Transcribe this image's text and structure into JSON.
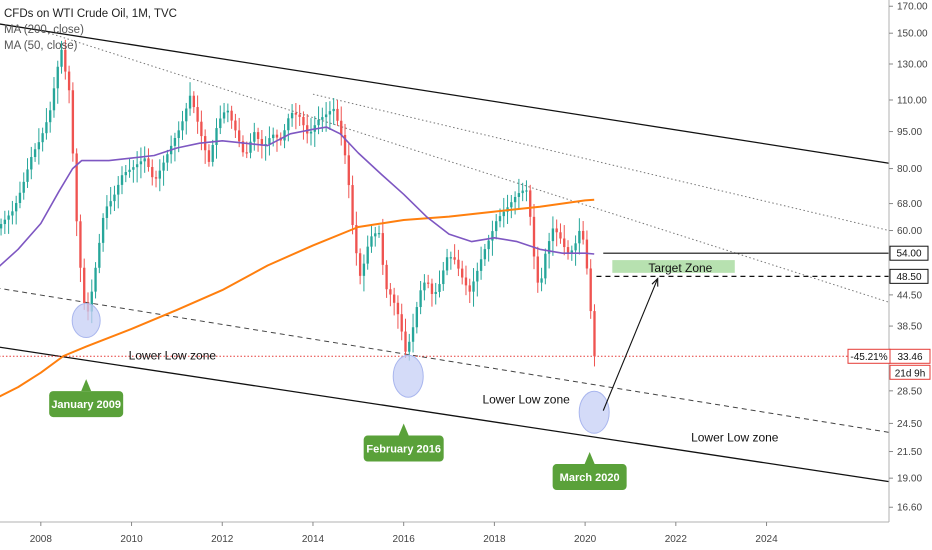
{
  "legend": {
    "title": "CFDs on WTI Crude Oil, 1M, TVC",
    "ma200": "MA (200, close)",
    "ma50": "MA (50, close)"
  },
  "chart_data": {
    "type": "candlestick",
    "title": "CFDs on WTI Crude Oil, 1M, TVC",
    "y_scale": "log",
    "ylim": [
      15.5,
      175
    ],
    "xlim": [
      2007.1,
      2026.7
    ],
    "y_ticks": [
      {
        "v": 170,
        "label": "170.00"
      },
      {
        "v": 150,
        "label": "150.00"
      },
      {
        "v": 130,
        "label": "130.00"
      },
      {
        "v": 110,
        "label": "110.00"
      },
      {
        "v": 95,
        "label": "95.00"
      },
      {
        "v": 80,
        "label": "80.00"
      },
      {
        "v": 68,
        "label": "68.00"
      },
      {
        "v": 60,
        "label": "60.00"
      },
      {
        "v": 44.5,
        "label": "44.50"
      },
      {
        "v": 38.5,
        "label": "38.50"
      },
      {
        "v": 28.5,
        "label": "28.50"
      },
      {
        "v": 24.5,
        "label": "24.50"
      },
      {
        "v": 21.5,
        "label": "21.50"
      },
      {
        "v": 19,
        "label": "19.00"
      },
      {
        "v": 16.6,
        "label": "16.60"
      }
    ],
    "x_ticks": [
      {
        "v": 2008,
        "label": "2008"
      },
      {
        "v": 2010,
        "label": "2010"
      },
      {
        "v": 2012,
        "label": "2012"
      },
      {
        "v": 2014,
        "label": "2014"
      },
      {
        "v": 2016,
        "label": "2016"
      },
      {
        "v": 2018,
        "label": "2018"
      },
      {
        "v": 2020,
        "label": "2020"
      },
      {
        "v": 2022,
        "label": "2022"
      },
      {
        "v": 2024,
        "label": "2024"
      }
    ],
    "price_points": [
      [
        2007.0,
        60
      ],
      [
        2007.2,
        63
      ],
      [
        2007.4,
        66
      ],
      [
        2007.6,
        74
      ],
      [
        2007.8,
        85
      ],
      [
        2008.0,
        92
      ],
      [
        2008.2,
        104
      ],
      [
        2008.35,
        125
      ],
      [
        2008.45,
        140
      ],
      [
        2008.55,
        124
      ],
      [
        2008.65,
        112
      ],
      [
        2008.75,
        70
      ],
      [
        2008.85,
        53
      ],
      [
        2008.95,
        43
      ],
      [
        2009.05,
        41
      ],
      [
        2009.2,
        50
      ],
      [
        2009.4,
        66
      ],
      [
        2009.6,
        70
      ],
      [
        2009.8,
        78
      ],
      [
        2010.0,
        80
      ],
      [
        2010.3,
        84
      ],
      [
        2010.5,
        75
      ],
      [
        2010.7,
        82
      ],
      [
        2010.9,
        90
      ],
      [
        2011.1,
        98
      ],
      [
        2011.3,
        113
      ],
      [
        2011.5,
        96
      ],
      [
        2011.7,
        82
      ],
      [
        2011.9,
        99
      ],
      [
        2012.1,
        106
      ],
      [
        2012.3,
        95
      ],
      [
        2012.5,
        84
      ],
      [
        2012.7,
        95
      ],
      [
        2012.9,
        88
      ],
      [
        2013.1,
        94
      ],
      [
        2013.3,
        91
      ],
      [
        2013.5,
        104
      ],
      [
        2013.7,
        102
      ],
      [
        2013.9,
        93
      ],
      [
        2014.1,
        100
      ],
      [
        2014.3,
        103
      ],
      [
        2014.45,
        106
      ],
      [
        2014.6,
        96
      ],
      [
        2014.75,
        81
      ],
      [
        2014.9,
        58
      ],
      [
        2015.05,
        48
      ],
      [
        2015.25,
        58
      ],
      [
        2015.45,
        60
      ],
      [
        2015.6,
        46
      ],
      [
        2015.75,
        44
      ],
      [
        2015.9,
        40
      ],
      [
        2016.05,
        33.8
      ],
      [
        2016.2,
        38
      ],
      [
        2016.35,
        45
      ],
      [
        2016.5,
        48
      ],
      [
        2016.65,
        44
      ],
      [
        2016.8,
        47
      ],
      [
        2016.95,
        53
      ],
      [
        2017.1,
        53
      ],
      [
        2017.3,
        48
      ],
      [
        2017.45,
        45
      ],
      [
        2017.6,
        49
      ],
      [
        2017.75,
        54
      ],
      [
        2017.9,
        58
      ],
      [
        2018.05,
        63
      ],
      [
        2018.3,
        67
      ],
      [
        2018.5,
        71
      ],
      [
        2018.7,
        73
      ],
      [
        2018.8,
        63
      ],
      [
        2018.9,
        50
      ],
      [
        2019.0,
        45
      ],
      [
        2019.1,
        53
      ],
      [
        2019.3,
        61
      ],
      [
        2019.45,
        58
      ],
      [
        2019.6,
        54
      ],
      [
        2019.75,
        55
      ],
      [
        2019.9,
        61
      ],
      [
        2020.0,
        55
      ],
      [
        2020.1,
        44
      ],
      [
        2020.2,
        33.46
      ]
    ],
    "ma50_points": [
      [
        2007.0,
        50
      ],
      [
        2007.5,
        55
      ],
      [
        2008.0,
        62
      ],
      [
        2008.4,
        72
      ],
      [
        2008.7,
        80
      ],
      [
        2008.9,
        83
      ],
      [
        2009.5,
        83
      ],
      [
        2010.0,
        84
      ],
      [
        2010.5,
        85
      ],
      [
        2011.0,
        88
      ],
      [
        2011.5,
        90
      ],
      [
        2012.0,
        91
      ],
      [
        2012.5,
        90
      ],
      [
        2013.0,
        89
      ],
      [
        2013.5,
        94
      ],
      [
        2014.0,
        96
      ],
      [
        2014.3,
        97
      ],
      [
        2014.6,
        94
      ],
      [
        2015.0,
        86
      ],
      [
        2015.5,
        78
      ],
      [
        2016.0,
        71
      ],
      [
        2016.5,
        64
      ],
      [
        2017.0,
        59
      ],
      [
        2017.5,
        57
      ],
      [
        2018.0,
        58
      ],
      [
        2018.5,
        57
      ],
      [
        2019.0,
        55
      ],
      [
        2019.5,
        54
      ],
      [
        2020.0,
        54
      ],
      [
        2020.2,
        53.8
      ]
    ],
    "ma200_points": [
      [
        2007.0,
        27.5
      ],
      [
        2007.5,
        29
      ],
      [
        2008.0,
        31
      ],
      [
        2008.5,
        33.5
      ],
      [
        2009.0,
        35
      ],
      [
        2010.0,
        38
      ],
      [
        2011.0,
        41.5
      ],
      [
        2012.0,
        45.5
      ],
      [
        2013.0,
        51
      ],
      [
        2014.0,
        56
      ],
      [
        2015.0,
        61
      ],
      [
        2015.5,
        62
      ],
      [
        2016.0,
        63
      ],
      [
        2017.0,
        64
      ],
      [
        2018.0,
        65.5
      ],
      [
        2019.0,
        67
      ],
      [
        2020.0,
        69
      ],
      [
        2020.2,
        69.2
      ]
    ],
    "resistance_line": [
      [
        2007.0,
        157
      ],
      [
        2026.7,
        82
      ]
    ],
    "support_line": [
      [
        2007.0,
        35
      ],
      [
        2026.7,
        18.7
      ]
    ],
    "dashed_trendline": [
      [
        2007.0,
        46
      ],
      [
        2026.7,
        23.5
      ]
    ],
    "dotted_lines": [
      [
        [
          2008.0,
          152
        ],
        [
          2026.7,
          43
        ]
      ],
      [
        [
          2014.0,
          113
        ],
        [
          2026.7,
          60
        ]
      ]
    ],
    "horizontal_levels": [
      {
        "value": 54.0,
        "label": "54.00",
        "style": "solid",
        "x_from": 2020.4
      },
      {
        "value": 48.5,
        "label": "48.50",
        "style": "dashed",
        "x_from": 2020.25
      },
      {
        "value": 33.46,
        "label": "33.46",
        "style": "dotted",
        "x_from": 2007.0
      }
    ],
    "target_zone": {
      "label": "Target Zone",
      "x_from": 2020.6,
      "x_to": 2023.3,
      "y_top": 52.3,
      "y_bottom": 49.3
    },
    "projection_arrow": {
      "from": [
        2020.4,
        26.0
      ],
      "to": [
        2021.6,
        48.0
      ]
    },
    "ellipses": [
      {
        "name": "jan-2009",
        "cx": 2009.0,
        "cy": 39.5
      },
      {
        "name": "feb-2016",
        "cx": 2016.1,
        "cy": 30.5
      },
      {
        "name": "mar-2020",
        "cx": 2020.2,
        "cy": 25.8
      }
    ],
    "annotations": [
      {
        "text": "Lower Low zone",
        "x": 2010.9,
        "y": 33.0
      },
      {
        "text": "Lower Low zone",
        "x": 2018.7,
        "y": 26.9
      },
      {
        "text": "Lower Low zone",
        "x": 2023.3,
        "y": 22.5
      }
    ],
    "badges": [
      {
        "text": "January 2009",
        "x": 2009.0,
        "y": 26.8
      },
      {
        "text": "February 2016",
        "x": 2016.0,
        "y": 21.8
      },
      {
        "text": "March 2020",
        "x": 2020.1,
        "y": 19.1
      }
    ],
    "change_label": "-45.21%",
    "countdown": "21d 9h",
    "last_price": "33.46"
  },
  "colors": {
    "up": "#26a69a",
    "down": "#ef5350",
    "ma50": "#7e57c2",
    "ma200": "#ff7f0e",
    "badge": "#5aa13a",
    "ellipse": "#c5cff5",
    "target_zone": "#b7e1b0",
    "price_line": "#e53935"
  }
}
